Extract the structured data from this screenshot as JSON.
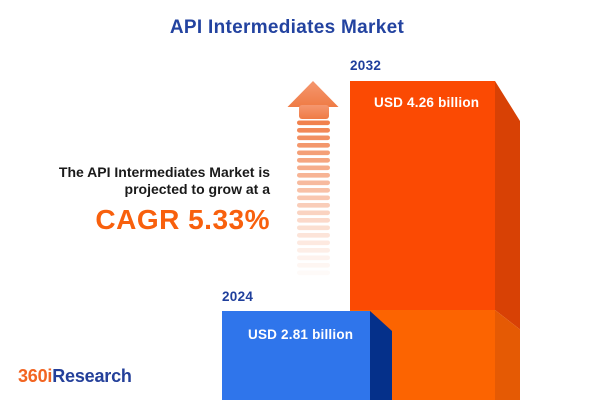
{
  "title": "API Intermediates Market",
  "headline": {
    "line1": "The API Intermediates Market is",
    "line2": "projected to grow at a",
    "cagr": "CAGR 5.33%"
  },
  "bars": [
    {
      "year": "2024",
      "value_label": "USD 2.81 billion",
      "front_color": "#2f75eb",
      "side_color": "#05308a"
    },
    {
      "year": "2032",
      "value_label": "USD 4.26 billion",
      "front_color": "#fb4a03",
      "front_color_lower": "#fc6401",
      "side_color": "#d84105",
      "side_color_lower": "#e55a04"
    }
  ],
  "icons": {
    "growth_arrow": "dashed-up-arrow",
    "dash_color": "#f07a43"
  },
  "logo": {
    "brand_orange": "360i",
    "brand_blue": "Research"
  },
  "colors": {
    "title_blue": "#2343a0",
    "year_label_blue": "#1f3f9c",
    "cagr_orange": "#f8600d",
    "headline_text": "#1a1a1a",
    "background": "#ffffff"
  },
  "chart_data": {
    "type": "bar",
    "title": "API Intermediates Market",
    "categories": [
      "2024",
      "2032"
    ],
    "values": [
      2.81,
      4.26
    ],
    "unit": "USD billion",
    "value_labels": [
      "USD 2.81 billion",
      "USD 4.26 billion"
    ],
    "cagr_percent": 5.33,
    "series_colors": [
      "#2f75eb",
      "#fb4a03"
    ],
    "orientation": "vertical",
    "style": "3d-infographic",
    "legend": "none",
    "axes": "none",
    "annotations": [
      "The API Intermediates Market is projected to grow at a",
      "CAGR 5.33%"
    ]
  }
}
